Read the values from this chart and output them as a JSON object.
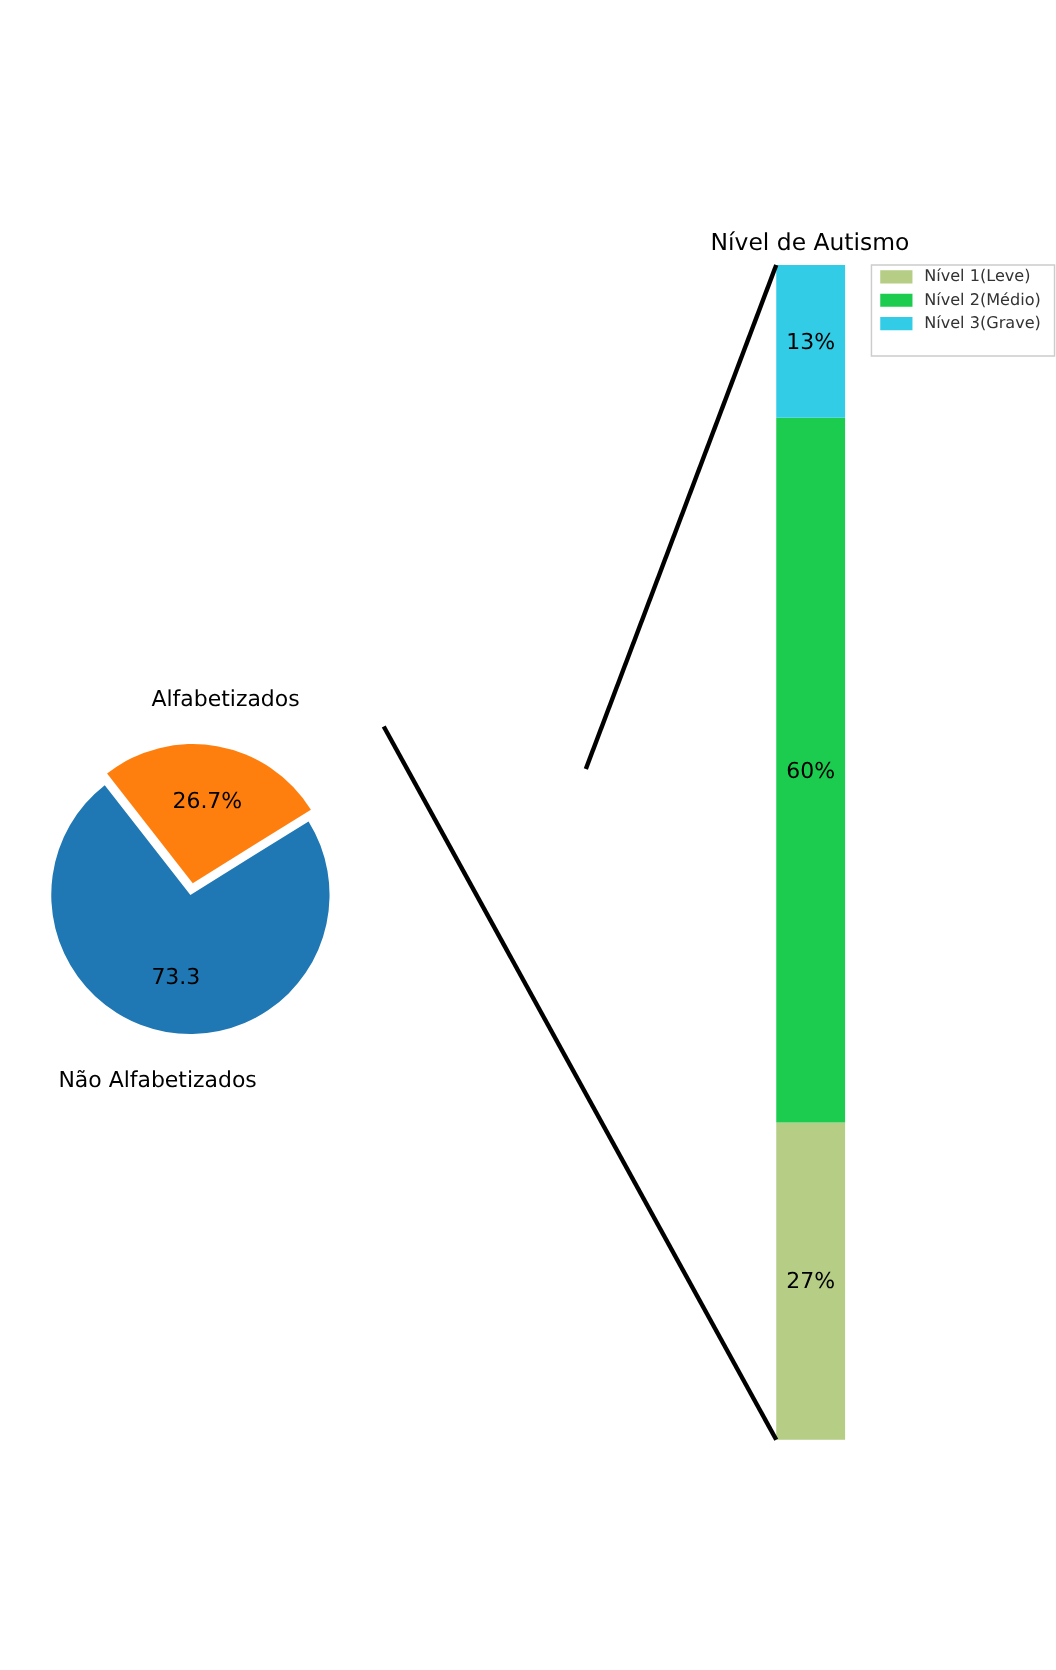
{
  "chart_data": [
    {
      "type": "pie",
      "categories": [
        "Alfabetizados",
        "Não Alfabetizados"
      ],
      "values": [
        26.7,
        73.3
      ],
      "colors": [
        "#ff7f0e",
        "#1f77b4"
      ],
      "value_labels": [
        "26.7%",
        "73.3"
      ]
    },
    {
      "type": "bar",
      "stacked": true,
      "title": "Nível de Autismo",
      "categories": [
        null
      ],
      "legend": "top right",
      "series": [
        {
          "name": "Nível 1(Leve)",
          "color": "#b5cd85",
          "values": [
            27
          ],
          "value_labels": [
            "27%"
          ]
        },
        {
          "name": "Nível 2(Médio)",
          "color": "#1bcc4e",
          "values": [
            60
          ],
          "value_labels": [
            "60%"
          ]
        },
        {
          "name": "Nível 3(Grave)",
          "color": "#33cce6",
          "values": [
            13
          ],
          "value_labels": [
            "13%"
          ]
        }
      ]
    }
  ]
}
